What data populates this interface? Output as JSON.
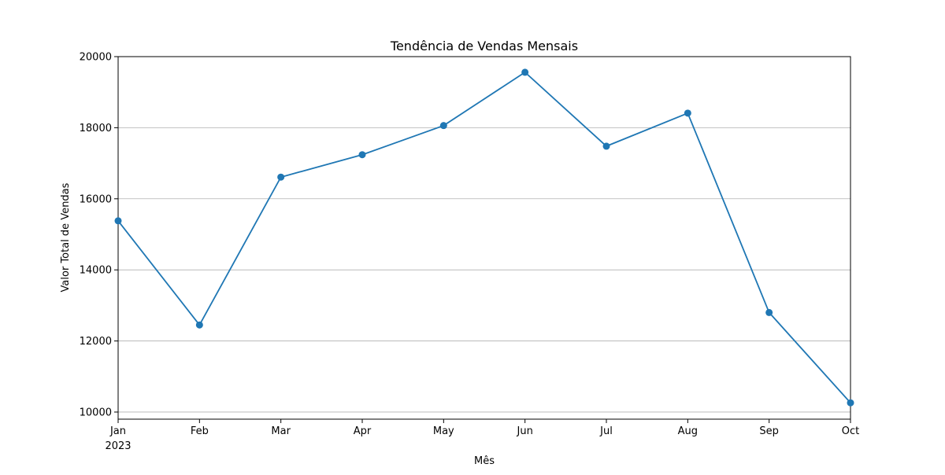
{
  "chart_data": {
    "type": "line",
    "title": "Tendência de Vendas Mensais",
    "xlabel": "Mês",
    "ylabel": "Valor Total de Vendas",
    "categories": [
      "Jan",
      "Feb",
      "Mar",
      "Apr",
      "May",
      "Jun",
      "Jul",
      "Aug",
      "Sep",
      "Oct"
    ],
    "year_label": "2023",
    "values": [
      15380,
      12450,
      16610,
      17240,
      18060,
      19560,
      17480,
      18410,
      12800,
      10260
    ],
    "ylim": [
      9800,
      20000
    ],
    "yticks": [
      10000,
      12000,
      14000,
      16000,
      18000,
      20000
    ],
    "grid": "horizontal",
    "marker": "circle",
    "line_color": "#1f77b4"
  }
}
